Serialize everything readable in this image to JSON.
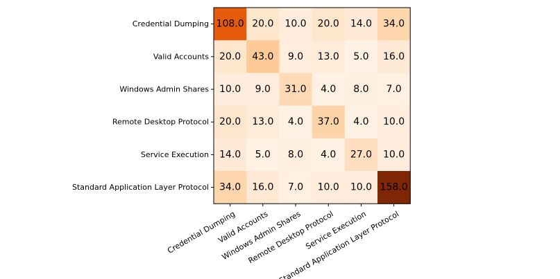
{
  "chart_data": {
    "type": "heatmap",
    "title": "",
    "xlabel": "",
    "ylabel": "",
    "rows": [
      "Credential Dumping",
      "Valid Accounts",
      "Windows Admin Shares",
      "Remote Desktop Protocol",
      "Service Execution",
      "Standard Application Layer Protocol"
    ],
    "columns": [
      "Credential Dumping",
      "Valid Accounts",
      "Windows Admin Shares",
      "Remote Desktop Protocol",
      "Service Execution",
      "Standard Application Layer Protocol"
    ],
    "values": [
      [
        108.0,
        20.0,
        10.0,
        20.0,
        14.0,
        34.0
      ],
      [
        20.0,
        43.0,
        9.0,
        13.0,
        5.0,
        16.0
      ],
      [
        10.0,
        9.0,
        31.0,
        4.0,
        8.0,
        7.0
      ],
      [
        20.0,
        13.0,
        4.0,
        37.0,
        4.0,
        10.0
      ],
      [
        14.0,
        5.0,
        8.0,
        4.0,
        27.0,
        10.0
      ],
      [
        34.0,
        16.0,
        7.0,
        10.0,
        10.0,
        158.0
      ]
    ],
    "value_format": "0.0",
    "colormap": "Oranges",
    "color_range": [
      0,
      158.0
    ],
    "grid": false,
    "legend": "none"
  }
}
